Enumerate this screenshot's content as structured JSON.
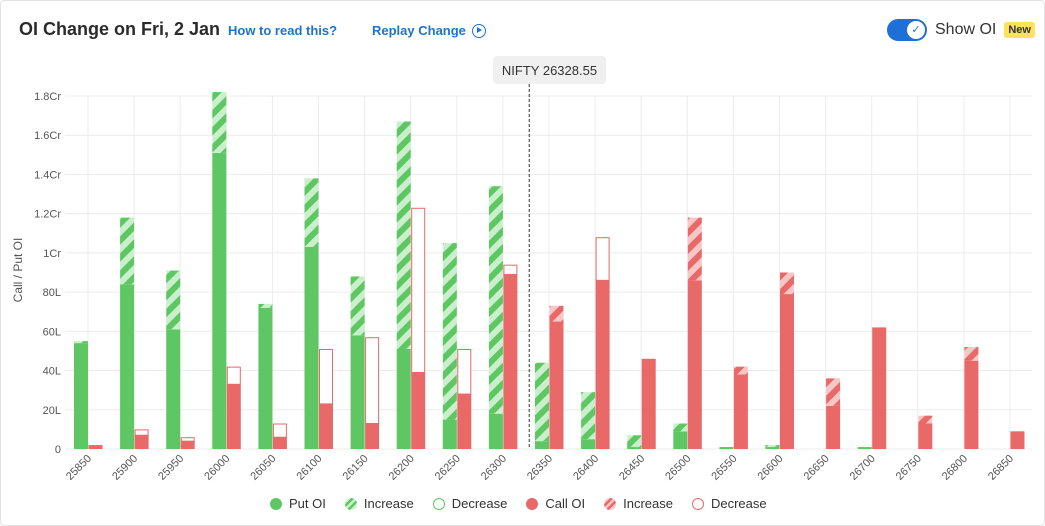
{
  "header": {
    "title": "OI Change on Fri, 2 Jan",
    "help_link": "How to read this?",
    "replay_link": "Replay Change",
    "toggle_label": "Show OI",
    "toggle_on": true,
    "new_badge": "New"
  },
  "spot_label": "NIFTY 26328.55",
  "legend": {
    "put_oi": "Put OI",
    "put_increase": "Increase",
    "put_decrease": "Decrease",
    "call_oi": "Call OI",
    "call_increase": "Increase",
    "call_decrease": "Decrease"
  },
  "colors": {
    "put": "#5ec764",
    "call": "#e96868",
    "accent": "#1b73d3"
  },
  "chart_data": {
    "type": "bar",
    "ylabel": "Call / Put OI",
    "ylim": [
      0,
      180
    ],
    "y_unit": "L",
    "y_ticks": [
      {
        "v": 0,
        "label": "0"
      },
      {
        "v": 20,
        "label": "20L"
      },
      {
        "v": 40,
        "label": "40L"
      },
      {
        "v": 60,
        "label": "60L"
      },
      {
        "v": 80,
        "label": "80L"
      },
      {
        "v": 100,
        "label": "1Cr"
      },
      {
        "v": 120,
        "label": "1.2Cr"
      },
      {
        "v": 140,
        "label": "1.4Cr"
      },
      {
        "v": 160,
        "label": "1.6Cr"
      },
      {
        "v": 180,
        "label": "1.8Cr"
      }
    ],
    "categories": [
      "25850",
      "25900",
      "25950",
      "26000",
      "26050",
      "26100",
      "26150",
      "26200",
      "26250",
      "26300",
      "26350",
      "26400",
      "26450",
      "26500",
      "26550",
      "26600",
      "26650",
      "26700",
      "26750",
      "26800",
      "26850"
    ],
    "spot": 26328.55,
    "series": [
      {
        "name": "Put OI",
        "side": "put",
        "base": [
          54,
          84,
          61,
          151,
          72,
          103,
          58,
          51,
          15,
          18,
          4,
          5,
          1,
          9,
          1,
          1,
          0,
          1,
          0,
          0,
          0
        ],
        "total": [
          55,
          118,
          91,
          182,
          74,
          138,
          88,
          167,
          105,
          134,
          44,
          29,
          7,
          13,
          1,
          2,
          0,
          1,
          0,
          0,
          0
        ]
      },
      {
        "name": "Call OI",
        "side": "call",
        "base": [
          2,
          7,
          4,
          33,
          6,
          23,
          13,
          39,
          28,
          89,
          65,
          86,
          46,
          86,
          38,
          79,
          22,
          62,
          13,
          45,
          9
        ],
        "total": [
          2,
          10,
          6,
          42,
          13,
          51,
          57,
          123,
          51,
          94,
          73,
          108,
          46,
          118,
          42,
          90,
          36,
          62,
          17,
          52,
          9
        ]
      }
    ]
  }
}
